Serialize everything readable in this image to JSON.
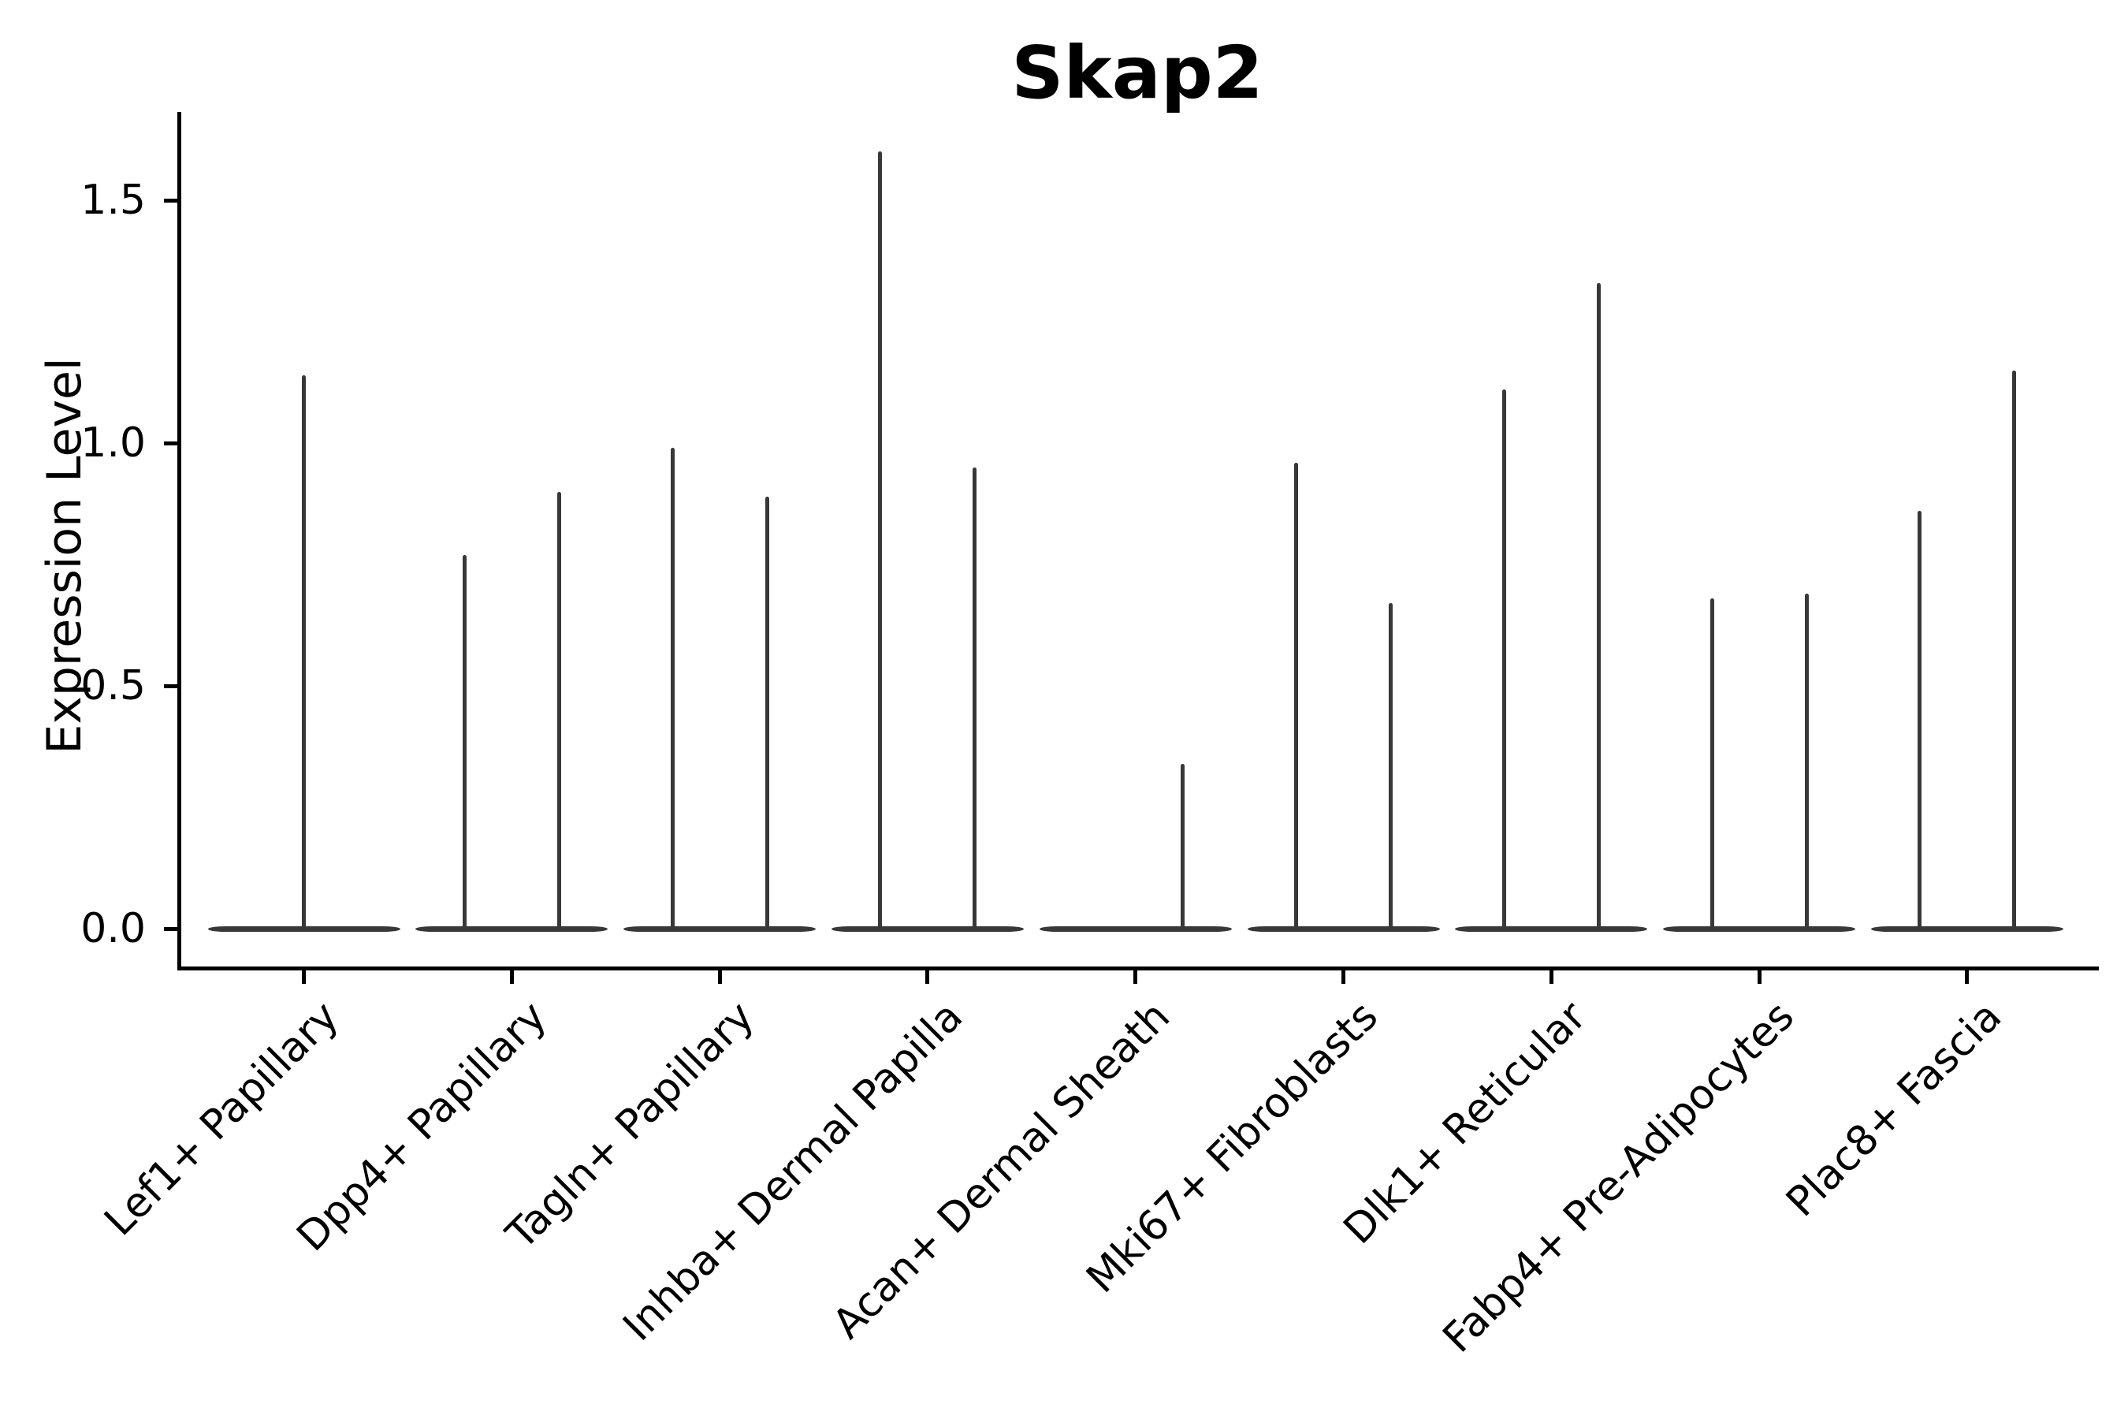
{
  "title": "Skap2",
  "chart_data": {
    "type": "violin",
    "title": "Skap2",
    "xlabel": "",
    "ylabel": "Expression Level",
    "grid": false,
    "legend_position": "none",
    "background_color": "#ffffff",
    "violin_color": "#383838",
    "axis_color": "#000000",
    "ylim": [
      -0.06,
      1.68
    ],
    "ytick_values": [
      0.0,
      0.5,
      1.0,
      1.5
    ],
    "ytick_labels": [
      "0.0",
      "0.5",
      "1.0",
      "1.5"
    ],
    "categories": [
      "Lef1+ Papillary",
      "Dpp4+ Papillary",
      "Tagln+ Papillary",
      "Inhba+ Dermal Papilla",
      "Acan+ Dermal Sheath",
      "Mki67+ Fibroblasts",
      "Dlk1+ Reticular",
      "Fabp4+ Pre-Adipocytes",
      "Plac8+ Fascia"
    ],
    "description": "Violin plot of Skap2 expression per fibroblast cluster; expression is near zero for most cells so each violin renders as a flat base at 0 with thin density spikes up to the maximum expression value.",
    "violins": [
      {
        "category": "Lef1+ Papillary",
        "spikes": [
          {
            "position": "center",
            "max": 1.14
          }
        ]
      },
      {
        "category": "Dpp4+ Papillary",
        "spikes": [
          {
            "position": "left",
            "max": 0.77
          },
          {
            "position": "right",
            "max": 0.9
          }
        ]
      },
      {
        "category": "Tagln+ Papillary",
        "spikes": [
          {
            "position": "left",
            "max": 0.99
          },
          {
            "position": "right",
            "max": 0.89
          }
        ]
      },
      {
        "category": "Inhba+ Dermal Papilla",
        "spikes": [
          {
            "position": "left",
            "max": 1.6
          },
          {
            "position": "right",
            "max": 0.95
          }
        ]
      },
      {
        "category": "Acan+ Dermal Sheath",
        "spikes": [
          {
            "position": "right",
            "max": 0.34
          }
        ]
      },
      {
        "category": "Mki67+ Fibroblasts",
        "spikes": [
          {
            "position": "left",
            "max": 0.96
          },
          {
            "position": "right",
            "max": 0.67
          }
        ]
      },
      {
        "category": "Dlk1+ Reticular",
        "spikes": [
          {
            "position": "left",
            "max": 1.11
          },
          {
            "position": "right",
            "max": 1.33
          }
        ]
      },
      {
        "category": "Fabp4+ Pre-Adipocytes",
        "spikes": [
          {
            "position": "left",
            "max": 0.68
          },
          {
            "position": "right",
            "max": 0.69
          }
        ]
      },
      {
        "category": "Plac8+ Fascia",
        "spikes": [
          {
            "position": "left",
            "max": 0.86
          },
          {
            "position": "right",
            "max": 1.15
          }
        ]
      }
    ]
  }
}
